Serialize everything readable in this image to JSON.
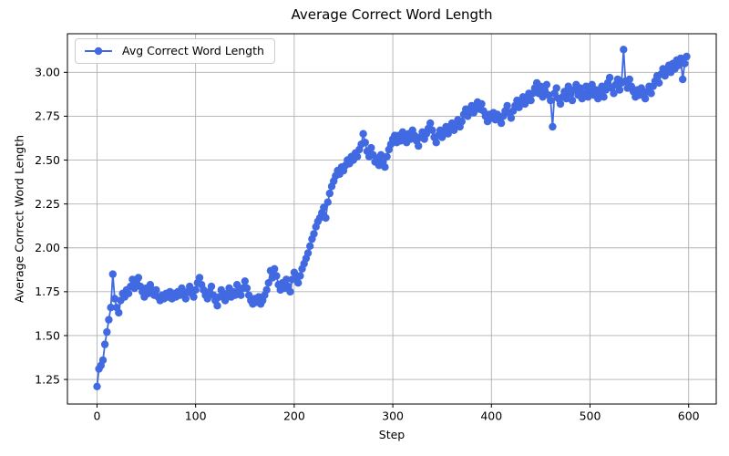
{
  "chart_data": {
    "type": "line",
    "title": "Average Correct Word Length",
    "xlabel": "Step",
    "ylabel": "Average Correct Word Length",
    "grid": true,
    "legend": {
      "position": "upper left",
      "entries": [
        {
          "label": "Avg Correct Word Length",
          "color": "#4169E1",
          "marker": "circle"
        }
      ]
    },
    "xlim": [
      -30,
      628
    ],
    "ylim": [
      1.11,
      3.22
    ],
    "xticks": [
      0,
      100,
      200,
      300,
      400,
      500,
      600
    ],
    "yticks": [
      1.25,
      1.5,
      1.75,
      2.0,
      2.25,
      2.5,
      2.75,
      3.0
    ],
    "colors": {
      "line": "#4169E1",
      "grid": "#b0b0b0",
      "spine": "#000000",
      "text": "#000000",
      "legend_border": "#cccccc"
    },
    "series": [
      {
        "name": "Avg Correct Word Length",
        "x": [
          0,
          2,
          4,
          6,
          8,
          10,
          12,
          14,
          16,
          18,
          20,
          22,
          24,
          26,
          28,
          30,
          32,
          34,
          36,
          38,
          40,
          42,
          44,
          46,
          48,
          50,
          52,
          54,
          56,
          58,
          60,
          62,
          64,
          66,
          68,
          70,
          72,
          74,
          76,
          78,
          80,
          82,
          84,
          86,
          88,
          90,
          92,
          94,
          96,
          98,
          100,
          102,
          104,
          106,
          108,
          110,
          112,
          114,
          116,
          118,
          120,
          122,
          124,
          126,
          128,
          130,
          132,
          134,
          136,
          138,
          140,
          142,
          144,
          146,
          148,
          150,
          152,
          154,
          156,
          158,
          160,
          162,
          164,
          166,
          168,
          170,
          172,
          174,
          176,
          178,
          180,
          182,
          184,
          186,
          188,
          190,
          192,
          194,
          196,
          198,
          200,
          202,
          204,
          206,
          208,
          210,
          212,
          214,
          216,
          218,
          220,
          222,
          224,
          226,
          228,
          230,
          232,
          234,
          236,
          238,
          240,
          242,
          244,
          246,
          248,
          250,
          252,
          254,
          256,
          258,
          260,
          262,
          264,
          266,
          268,
          270,
          272,
          274,
          276,
          278,
          280,
          282,
          284,
          286,
          288,
          290,
          292,
          294,
          296,
          298,
          300,
          302,
          304,
          306,
          308,
          310,
          312,
          314,
          316,
          318,
          320,
          322,
          324,
          326,
          328,
          330,
          332,
          334,
          336,
          338,
          340,
          342,
          344,
          346,
          348,
          350,
          352,
          354,
          356,
          358,
          360,
          362,
          364,
          366,
          368,
          370,
          372,
          374,
          376,
          378,
          380,
          382,
          384,
          386,
          388,
          390,
          392,
          394,
          396,
          398,
          400,
          402,
          404,
          406,
          408,
          410,
          412,
          414,
          416,
          418,
          420,
          422,
          424,
          426,
          428,
          430,
          432,
          434,
          436,
          438,
          440,
          442,
          444,
          446,
          448,
          450,
          452,
          454,
          456,
          458,
          460,
          462,
          464,
          466,
          468,
          470,
          472,
          474,
          476,
          478,
          480,
          482,
          484,
          486,
          488,
          490,
          492,
          494,
          496,
          498,
          500,
          502,
          504,
          506,
          508,
          510,
          512,
          514,
          516,
          518,
          520,
          522,
          524,
          526,
          528,
          530,
          532,
          534,
          536,
          538,
          540,
          542,
          544,
          546,
          548,
          550,
          552,
          554,
          556,
          558,
          560,
          562,
          564,
          566,
          568,
          570,
          572,
          574,
          576,
          578,
          580,
          582,
          584,
          586,
          588,
          590,
          592,
          594,
          596,
          598
        ],
        "y": [
          1.21,
          1.31,
          1.33,
          1.36,
          1.45,
          1.52,
          1.59,
          1.66,
          1.85,
          1.71,
          1.66,
          1.63,
          1.7,
          1.74,
          1.72,
          1.76,
          1.74,
          1.78,
          1.82,
          1.77,
          1.8,
          1.83,
          1.78,
          1.75,
          1.72,
          1.77,
          1.74,
          1.79,
          1.76,
          1.73,
          1.76,
          1.72,
          1.7,
          1.73,
          1.71,
          1.74,
          1.72,
          1.75,
          1.71,
          1.74,
          1.72,
          1.75,
          1.73,
          1.77,
          1.74,
          1.71,
          1.75,
          1.78,
          1.74,
          1.72,
          1.76,
          1.8,
          1.83,
          1.79,
          1.76,
          1.73,
          1.71,
          1.75,
          1.78,
          1.73,
          1.7,
          1.67,
          1.72,
          1.76,
          1.73,
          1.7,
          1.74,
          1.77,
          1.72,
          1.75,
          1.73,
          1.79,
          1.76,
          1.73,
          1.77,
          1.81,
          1.77,
          1.73,
          1.7,
          1.68,
          1.71,
          1.69,
          1.72,
          1.68,
          1.7,
          1.73,
          1.76,
          1.8,
          1.87,
          1.83,
          1.88,
          1.84,
          1.79,
          1.76,
          1.8,
          1.77,
          1.82,
          1.78,
          1.75,
          1.82,
          1.86,
          1.83,
          1.8,
          1.84,
          1.88,
          1.91,
          1.94,
          1.97,
          2.01,
          2.05,
          2.08,
          2.12,
          2.15,
          2.17,
          2.2,
          2.23,
          2.17,
          2.26,
          2.31,
          2.35,
          2.38,
          2.41,
          2.44,
          2.42,
          2.46,
          2.44,
          2.47,
          2.5,
          2.48,
          2.52,
          2.5,
          2.54,
          2.52,
          2.56,
          2.59,
          2.65,
          2.6,
          2.55,
          2.52,
          2.57,
          2.53,
          2.49,
          2.51,
          2.47,
          2.53,
          2.49,
          2.46,
          2.52,
          2.56,
          2.59,
          2.62,
          2.64,
          2.6,
          2.64,
          2.61,
          2.66,
          2.63,
          2.6,
          2.65,
          2.62,
          2.67,
          2.64,
          2.61,
          2.58,
          2.63,
          2.66,
          2.62,
          2.65,
          2.68,
          2.71,
          2.67,
          2.63,
          2.6,
          2.64,
          2.67,
          2.63,
          2.66,
          2.69,
          2.65,
          2.68,
          2.71,
          2.67,
          2.7,
          2.73,
          2.69,
          2.72,
          2.76,
          2.79,
          2.75,
          2.78,
          2.81,
          2.77,
          2.8,
          2.83,
          2.79,
          2.82,
          2.78,
          2.75,
          2.72,
          2.76,
          2.74,
          2.77,
          2.73,
          2.76,
          2.74,
          2.71,
          2.75,
          2.78,
          2.81,
          2.77,
          2.74,
          2.78,
          2.81,
          2.84,
          2.8,
          2.83,
          2.86,
          2.82,
          2.85,
          2.88,
          2.84,
          2.88,
          2.91,
          2.94,
          2.88,
          2.92,
          2.86,
          2.89,
          2.93,
          2.87,
          2.84,
          2.69,
          2.88,
          2.91,
          2.85,
          2.82,
          2.86,
          2.89,
          2.85,
          2.92,
          2.88,
          2.84,
          2.9,
          2.93,
          2.87,
          2.91,
          2.85,
          2.88,
          2.92,
          2.86,
          2.89,
          2.93,
          2.87,
          2.9,
          2.85,
          2.88,
          2.92,
          2.86,
          2.9,
          2.94,
          2.97,
          2.91,
          2.88,
          2.93,
          2.96,
          2.9,
          2.94,
          3.13,
          2.95,
          2.91,
          2.96,
          2.92,
          2.89,
          2.86,
          2.9,
          2.87,
          2.91,
          2.88,
          2.85,
          2.89,
          2.92,
          2.88,
          2.92,
          2.95,
          2.98,
          2.94,
          2.99,
          3.02,
          2.98,
          3.01,
          3.04,
          3.0,
          3.05,
          3.02,
          3.07,
          3.04,
          3.08,
          2.96,
          3.05,
          3.09
        ]
      }
    ]
  }
}
